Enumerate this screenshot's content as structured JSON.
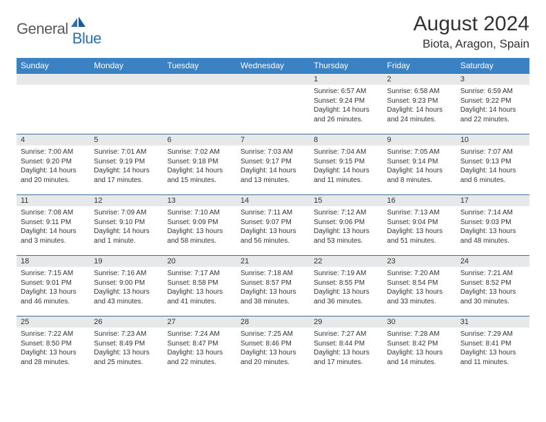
{
  "logo": {
    "text1": "General",
    "text2": "Blue"
  },
  "title": "August 2024",
  "location": "Biota, Aragon, Spain",
  "colors": {
    "header_bg": "#3b82c4",
    "header_text": "#ffffff",
    "row_border": "#3b6fa0",
    "daynum_bg": "#e7e8e9",
    "text": "#333333",
    "logo_gray": "#555a5f",
    "logo_blue": "#2f6fab"
  },
  "weekdays": [
    "Sunday",
    "Monday",
    "Tuesday",
    "Wednesday",
    "Thursday",
    "Friday",
    "Saturday"
  ],
  "weeks": [
    [
      {
        "day": "",
        "lines": []
      },
      {
        "day": "",
        "lines": []
      },
      {
        "day": "",
        "lines": []
      },
      {
        "day": "",
        "lines": []
      },
      {
        "day": "1",
        "lines": [
          "Sunrise: 6:57 AM",
          "Sunset: 9:24 PM",
          "Daylight: 14 hours",
          "and 26 minutes."
        ]
      },
      {
        "day": "2",
        "lines": [
          "Sunrise: 6:58 AM",
          "Sunset: 9:23 PM",
          "Daylight: 14 hours",
          "and 24 minutes."
        ]
      },
      {
        "day": "3",
        "lines": [
          "Sunrise: 6:59 AM",
          "Sunset: 9:22 PM",
          "Daylight: 14 hours",
          "and 22 minutes."
        ]
      }
    ],
    [
      {
        "day": "4",
        "lines": [
          "Sunrise: 7:00 AM",
          "Sunset: 9:20 PM",
          "Daylight: 14 hours",
          "and 20 minutes."
        ]
      },
      {
        "day": "5",
        "lines": [
          "Sunrise: 7:01 AM",
          "Sunset: 9:19 PM",
          "Daylight: 14 hours",
          "and 17 minutes."
        ]
      },
      {
        "day": "6",
        "lines": [
          "Sunrise: 7:02 AM",
          "Sunset: 9:18 PM",
          "Daylight: 14 hours",
          "and 15 minutes."
        ]
      },
      {
        "day": "7",
        "lines": [
          "Sunrise: 7:03 AM",
          "Sunset: 9:17 PM",
          "Daylight: 14 hours",
          "and 13 minutes."
        ]
      },
      {
        "day": "8",
        "lines": [
          "Sunrise: 7:04 AM",
          "Sunset: 9:15 PM",
          "Daylight: 14 hours",
          "and 11 minutes."
        ]
      },
      {
        "day": "9",
        "lines": [
          "Sunrise: 7:05 AM",
          "Sunset: 9:14 PM",
          "Daylight: 14 hours",
          "and 8 minutes."
        ]
      },
      {
        "day": "10",
        "lines": [
          "Sunrise: 7:07 AM",
          "Sunset: 9:13 PM",
          "Daylight: 14 hours",
          "and 6 minutes."
        ]
      }
    ],
    [
      {
        "day": "11",
        "lines": [
          "Sunrise: 7:08 AM",
          "Sunset: 9:11 PM",
          "Daylight: 14 hours",
          "and 3 minutes."
        ]
      },
      {
        "day": "12",
        "lines": [
          "Sunrise: 7:09 AM",
          "Sunset: 9:10 PM",
          "Daylight: 14 hours",
          "and 1 minute."
        ]
      },
      {
        "day": "13",
        "lines": [
          "Sunrise: 7:10 AM",
          "Sunset: 9:09 PM",
          "Daylight: 13 hours",
          "and 58 minutes."
        ]
      },
      {
        "day": "14",
        "lines": [
          "Sunrise: 7:11 AM",
          "Sunset: 9:07 PM",
          "Daylight: 13 hours",
          "and 56 minutes."
        ]
      },
      {
        "day": "15",
        "lines": [
          "Sunrise: 7:12 AM",
          "Sunset: 9:06 PM",
          "Daylight: 13 hours",
          "and 53 minutes."
        ]
      },
      {
        "day": "16",
        "lines": [
          "Sunrise: 7:13 AM",
          "Sunset: 9:04 PM",
          "Daylight: 13 hours",
          "and 51 minutes."
        ]
      },
      {
        "day": "17",
        "lines": [
          "Sunrise: 7:14 AM",
          "Sunset: 9:03 PM",
          "Daylight: 13 hours",
          "and 48 minutes."
        ]
      }
    ],
    [
      {
        "day": "18",
        "lines": [
          "Sunrise: 7:15 AM",
          "Sunset: 9:01 PM",
          "Daylight: 13 hours",
          "and 46 minutes."
        ]
      },
      {
        "day": "19",
        "lines": [
          "Sunrise: 7:16 AM",
          "Sunset: 9:00 PM",
          "Daylight: 13 hours",
          "and 43 minutes."
        ]
      },
      {
        "day": "20",
        "lines": [
          "Sunrise: 7:17 AM",
          "Sunset: 8:58 PM",
          "Daylight: 13 hours",
          "and 41 minutes."
        ]
      },
      {
        "day": "21",
        "lines": [
          "Sunrise: 7:18 AM",
          "Sunset: 8:57 PM",
          "Daylight: 13 hours",
          "and 38 minutes."
        ]
      },
      {
        "day": "22",
        "lines": [
          "Sunrise: 7:19 AM",
          "Sunset: 8:55 PM",
          "Daylight: 13 hours",
          "and 36 minutes."
        ]
      },
      {
        "day": "23",
        "lines": [
          "Sunrise: 7:20 AM",
          "Sunset: 8:54 PM",
          "Daylight: 13 hours",
          "and 33 minutes."
        ]
      },
      {
        "day": "24",
        "lines": [
          "Sunrise: 7:21 AM",
          "Sunset: 8:52 PM",
          "Daylight: 13 hours",
          "and 30 minutes."
        ]
      }
    ],
    [
      {
        "day": "25",
        "lines": [
          "Sunrise: 7:22 AM",
          "Sunset: 8:50 PM",
          "Daylight: 13 hours",
          "and 28 minutes."
        ]
      },
      {
        "day": "26",
        "lines": [
          "Sunrise: 7:23 AM",
          "Sunset: 8:49 PM",
          "Daylight: 13 hours",
          "and 25 minutes."
        ]
      },
      {
        "day": "27",
        "lines": [
          "Sunrise: 7:24 AM",
          "Sunset: 8:47 PM",
          "Daylight: 13 hours",
          "and 22 minutes."
        ]
      },
      {
        "day": "28",
        "lines": [
          "Sunrise: 7:25 AM",
          "Sunset: 8:46 PM",
          "Daylight: 13 hours",
          "and 20 minutes."
        ]
      },
      {
        "day": "29",
        "lines": [
          "Sunrise: 7:27 AM",
          "Sunset: 8:44 PM",
          "Daylight: 13 hours",
          "and 17 minutes."
        ]
      },
      {
        "day": "30",
        "lines": [
          "Sunrise: 7:28 AM",
          "Sunset: 8:42 PM",
          "Daylight: 13 hours",
          "and 14 minutes."
        ]
      },
      {
        "day": "31",
        "lines": [
          "Sunrise: 7:29 AM",
          "Sunset: 8:41 PM",
          "Daylight: 13 hours",
          "and 11 minutes."
        ]
      }
    ]
  ]
}
